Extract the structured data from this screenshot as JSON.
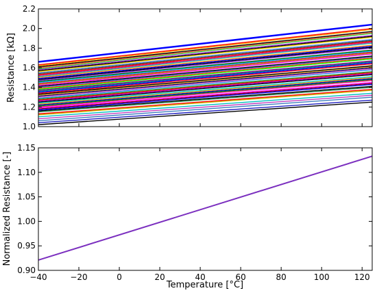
{
  "chart_data": [
    {
      "type": "line",
      "title": "",
      "xlabel": "",
      "ylabel": "Resistance [kΩ]",
      "xlim": [
        -40,
        125
      ],
      "ylim": [
        1.0,
        2.2
      ],
      "x_ticks": [
        -40,
        -20,
        0,
        20,
        40,
        60,
        80,
        100,
        120
      ],
      "x_ticks_shown": false,
      "y_ticks": [
        "1.0",
        "1.2",
        "1.4",
        "1.6",
        "1.8",
        "2.0",
        "2.2"
      ],
      "grid": false,
      "legend": "none",
      "series_note": "many resistor curves; each line from R(-40°C) to R(125°C)",
      "series": [
        {
          "color": "#000000",
          "values": [
            1.02,
            1.25
          ]
        },
        {
          "color": "#1f1fbf",
          "values": [
            1.04,
            1.27
          ]
        },
        {
          "color": "#3f7fbf",
          "values": [
            1.06,
            1.3
          ]
        },
        {
          "color": "#bf3fbf",
          "values": [
            1.08,
            1.32
          ]
        },
        {
          "color": "#00bfbf",
          "values": [
            1.1,
            1.34
          ]
        },
        {
          "color": "#bfbf00",
          "values": [
            1.12,
            1.37
          ]
        },
        {
          "color": "#ff0000",
          "values": [
            1.13,
            1.38
          ]
        },
        {
          "color": "#2e8b57",
          "values": [
            1.15,
            1.4
          ]
        },
        {
          "color": "#000000",
          "values": [
            1.16,
            1.41
          ]
        },
        {
          "color": "#0000ff",
          "values": [
            1.17,
            1.43
          ]
        },
        {
          "color": "#8b0000",
          "values": [
            1.18,
            1.44
          ]
        },
        {
          "color": "#ff00ff",
          "values": [
            1.19,
            1.45
          ]
        },
        {
          "color": "#ff1493",
          "values": [
            1.2,
            1.47
          ]
        },
        {
          "color": "#008000",
          "values": [
            1.21,
            1.48
          ]
        },
        {
          "color": "#0000cd",
          "values": [
            1.22,
            1.49
          ]
        },
        {
          "color": "#ffa500",
          "values": [
            1.23,
            1.5
          ]
        },
        {
          "color": "#00ced1",
          "values": [
            1.24,
            1.51
          ]
        },
        {
          "color": "#000000",
          "values": [
            1.25,
            1.53
          ]
        },
        {
          "color": "#9400d3",
          "values": [
            1.26,
            1.54
          ]
        },
        {
          "color": "#ff0000",
          "values": [
            1.27,
            1.55
          ]
        },
        {
          "color": "#228b22",
          "values": [
            1.28,
            1.56
          ]
        },
        {
          "color": "#1e90ff",
          "values": [
            1.29,
            1.58
          ]
        },
        {
          "color": "#ff69b4",
          "values": [
            1.3,
            1.59
          ]
        },
        {
          "color": "#000080",
          "values": [
            1.31,
            1.6
          ]
        },
        {
          "color": "#daa520",
          "values": [
            1.32,
            1.61
          ]
        },
        {
          "color": "#000000",
          "values": [
            1.33,
            1.62
          ]
        },
        {
          "color": "#ff0000",
          "values": [
            1.34,
            1.64
          ]
        },
        {
          "color": "#0000ff",
          "values": [
            1.35,
            1.65
          ]
        },
        {
          "color": "#008080",
          "values": [
            1.36,
            1.66
          ]
        },
        {
          "color": "#800080",
          "values": [
            1.37,
            1.67
          ]
        },
        {
          "color": "#00ff00",
          "values": [
            1.38,
            1.69
          ]
        },
        {
          "color": "#ff4500",
          "values": [
            1.39,
            1.7
          ]
        },
        {
          "color": "#4169e1",
          "values": [
            1.4,
            1.71
          ]
        },
        {
          "color": "#000000",
          "values": [
            1.41,
            1.72
          ]
        },
        {
          "color": "#ff00ff",
          "values": [
            1.42,
            1.74
          ]
        },
        {
          "color": "#b8860b",
          "values": [
            1.43,
            1.75
          ]
        },
        {
          "color": "#dc143c",
          "values": [
            1.44,
            1.76
          ]
        },
        {
          "color": "#00bfff",
          "values": [
            1.45,
            1.77
          ]
        },
        {
          "color": "#006400",
          "values": [
            1.46,
            1.78
          ]
        },
        {
          "color": "#8a2be2",
          "values": [
            1.47,
            1.8
          ]
        },
        {
          "color": "#000000",
          "values": [
            1.48,
            1.81
          ]
        },
        {
          "color": "#0000ff",
          "values": [
            1.49,
            1.82
          ]
        },
        {
          "color": "#ff8c00",
          "values": [
            1.5,
            1.83
          ]
        },
        {
          "color": "#20b2aa",
          "values": [
            1.51,
            1.85
          ]
        },
        {
          "color": "#c71585",
          "values": [
            1.52,
            1.86
          ]
        },
        {
          "color": "#ff0000",
          "values": [
            1.53,
            1.87
          ]
        },
        {
          "color": "#2f4f4f",
          "values": [
            1.54,
            1.88
          ]
        },
        {
          "color": "#6495ed",
          "values": [
            1.55,
            1.89
          ]
        },
        {
          "color": "#ffd700",
          "values": [
            1.56,
            1.91
          ]
        },
        {
          "color": "#000000",
          "values": [
            1.57,
            1.92
          ]
        },
        {
          "color": "#9932cc",
          "values": [
            1.58,
            1.93
          ]
        },
        {
          "color": "#32cd32",
          "values": [
            1.59,
            1.95
          ]
        },
        {
          "color": "#ff6347",
          "values": [
            1.6,
            1.96
          ]
        },
        {
          "color": "#000000",
          "values": [
            1.61,
            1.97
          ]
        },
        {
          "color": "#ffa500",
          "values": [
            1.62,
            1.99
          ]
        },
        {
          "color": "#ff0000",
          "values": [
            1.63,
            2.0
          ]
        },
        {
          "color": "#0000ff",
          "values": [
            1.66,
            2.04
          ]
        }
      ]
    },
    {
      "type": "line",
      "title": "",
      "xlabel": "Temperature [°C]",
      "ylabel": "Normalized Resistance [-]",
      "xlim": [
        -40,
        125
      ],
      "ylim": [
        0.9,
        1.15
      ],
      "x_ticks": [
        "−40",
        "−20",
        "0",
        "20",
        "40",
        "60",
        "80",
        "100",
        "120"
      ],
      "y_ticks": [
        "0.90",
        "0.95",
        "1.00",
        "1.05",
        "1.10",
        "1.15"
      ],
      "grid": false,
      "legend": "none",
      "series": [
        {
          "color": "#7b2fbf",
          "x": [
            -40,
            125
          ],
          "values": [
            0.921,
            1.133
          ]
        }
      ]
    }
  ]
}
